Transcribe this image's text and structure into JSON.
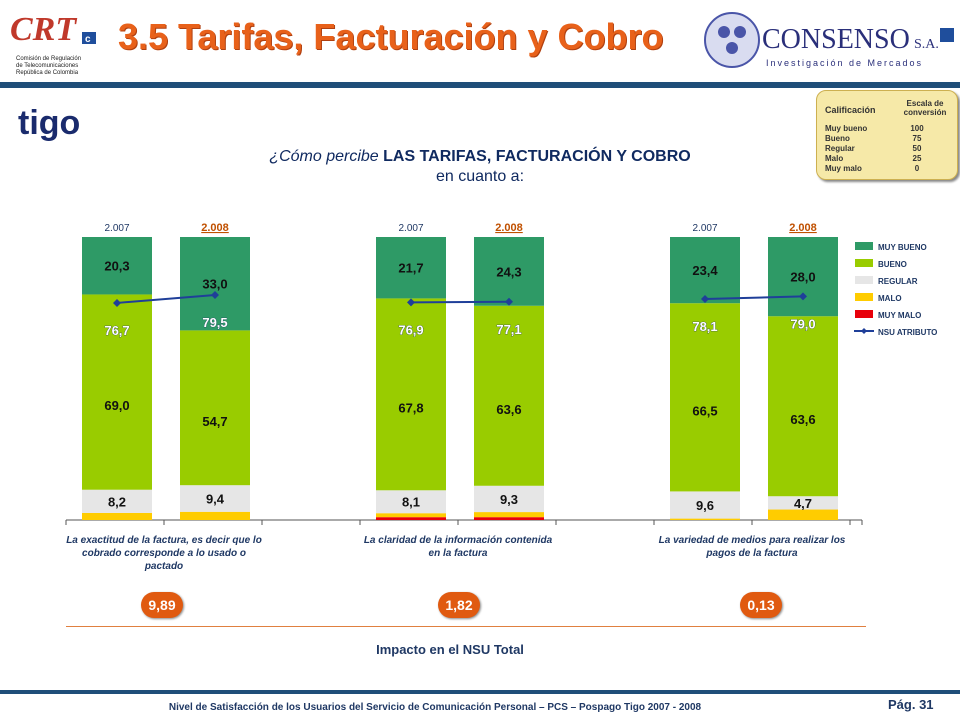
{
  "header": {
    "crt_logo_text": "CRT",
    "crt_subtitle": [
      "Comisión de Regulación",
      "de Telecomunicaciones",
      "República de Colombia"
    ],
    "title": "3.5 Tarifas, Facturación y Cobro",
    "consenso_name": "CONSENSO",
    "consenso_suffix": "S.A.",
    "consenso_tagline": "Investigación de Mercados",
    "tigo_logo_text": "tigo"
  },
  "question": {
    "prefix": "¿Cómo percibe ",
    "bold": "LAS TARIFAS, FACTURACIÓN Y COBRO",
    "line2": "en cuanto a:"
  },
  "scale_box": {
    "header_left": "Calificación",
    "header_right": "Escala de conversión",
    "rows": [
      {
        "label": "Muy bueno",
        "value": "100"
      },
      {
        "label": "Bueno",
        "value": "75"
      },
      {
        "label": "Regular",
        "value": "50"
      },
      {
        "label": "Malo",
        "value": "25"
      },
      {
        "label": "Muy malo",
        "value": "0"
      }
    ]
  },
  "colors": {
    "muy_bueno": "#2e9a66",
    "bueno": "#99cc00",
    "regular": "#e6e6e6",
    "malo": "#ffcc00",
    "muy_malo": "#e8000a",
    "nsu": "#1f3f99",
    "accent": "#e8611a"
  },
  "chart_data": {
    "type": "bar",
    "stacked": true,
    "ylim": [
      0,
      100
    ],
    "legend_position": "right",
    "legend": [
      "MUY BUENO",
      "BUENO",
      "REGULAR",
      "MALO",
      "MUY MALO",
      "NSU ATRIBUTO"
    ],
    "groups": [
      {
        "label": "La exactitud de la factura, es decir que lo cobrado corresponde a lo usado o pactado",
        "bars": [
          {
            "year": "2.007",
            "muy_bueno": 20.3,
            "bueno": 69.0,
            "regular": 8.2,
            "malo": 2.5,
            "muy_malo": 0.0,
            "nsu": 76.7,
            "labels": {
              "muy_bueno": "20,3",
              "bueno": "69,0",
              "regular": "8,2",
              "nsu": "76,7"
            }
          },
          {
            "year": "2.008",
            "muy_bueno": 33.0,
            "bueno": 54.7,
            "regular": 9.4,
            "malo": 2.9,
            "muy_malo": 0.0,
            "nsu": 79.5,
            "labels": {
              "muy_bueno": "33,0",
              "bueno": "54,7",
              "regular": "9,4",
              "nsu": "79,5"
            }
          }
        ],
        "impact": "9,89"
      },
      {
        "label": "La claridad de la información contenida en la factura",
        "bars": [
          {
            "year": "2.007",
            "muy_bueno": 21.7,
            "bueno": 67.8,
            "regular": 8.1,
            "malo": 1.4,
            "muy_malo": 1.0,
            "nsu": 76.9,
            "labels": {
              "muy_bueno": "21,7",
              "bueno": "67,8",
              "regular": "8,1",
              "nsu": "76,9"
            }
          },
          {
            "year": "2.008",
            "muy_bueno": 24.3,
            "bueno": 63.6,
            "regular": 9.3,
            "malo": 1.8,
            "muy_malo": 1.0,
            "nsu": 77.1,
            "labels": {
              "muy_bueno": "24,3",
              "bueno": "63,6",
              "regular": "9,3",
              "nsu": "77,1"
            }
          }
        ],
        "impact": "1,82"
      },
      {
        "label": "La variedad de medios para realizar los pagos de la factura",
        "bars": [
          {
            "year": "2.007",
            "muy_bueno": 23.4,
            "bueno": 66.5,
            "regular": 9.6,
            "malo": 0.5,
            "muy_malo": 0.0,
            "nsu": 78.1,
            "labels": {
              "muy_bueno": "23,4",
              "bueno": "66,5",
              "regular": "9,6",
              "nsu": "78,1"
            }
          },
          {
            "year": "2.008",
            "muy_bueno": 28.0,
            "bueno": 63.6,
            "regular": 4.7,
            "malo": 3.7,
            "muy_malo": 0.0,
            "nsu": 79.0,
            "labels": {
              "muy_bueno": "28,0",
              "bueno": "63,6",
              "regular": "4,7",
              "nsu": "79,0"
            }
          }
        ],
        "impact": "0,13"
      }
    ]
  },
  "impact_title": "Impacto en el NSU Total",
  "footer": "Nivel de Satisfacción de los Usuarios del Servicio de Comunicación Personal – PCS – Pospago Tigo 2007 - 2008",
  "page": "Pág. 31"
}
